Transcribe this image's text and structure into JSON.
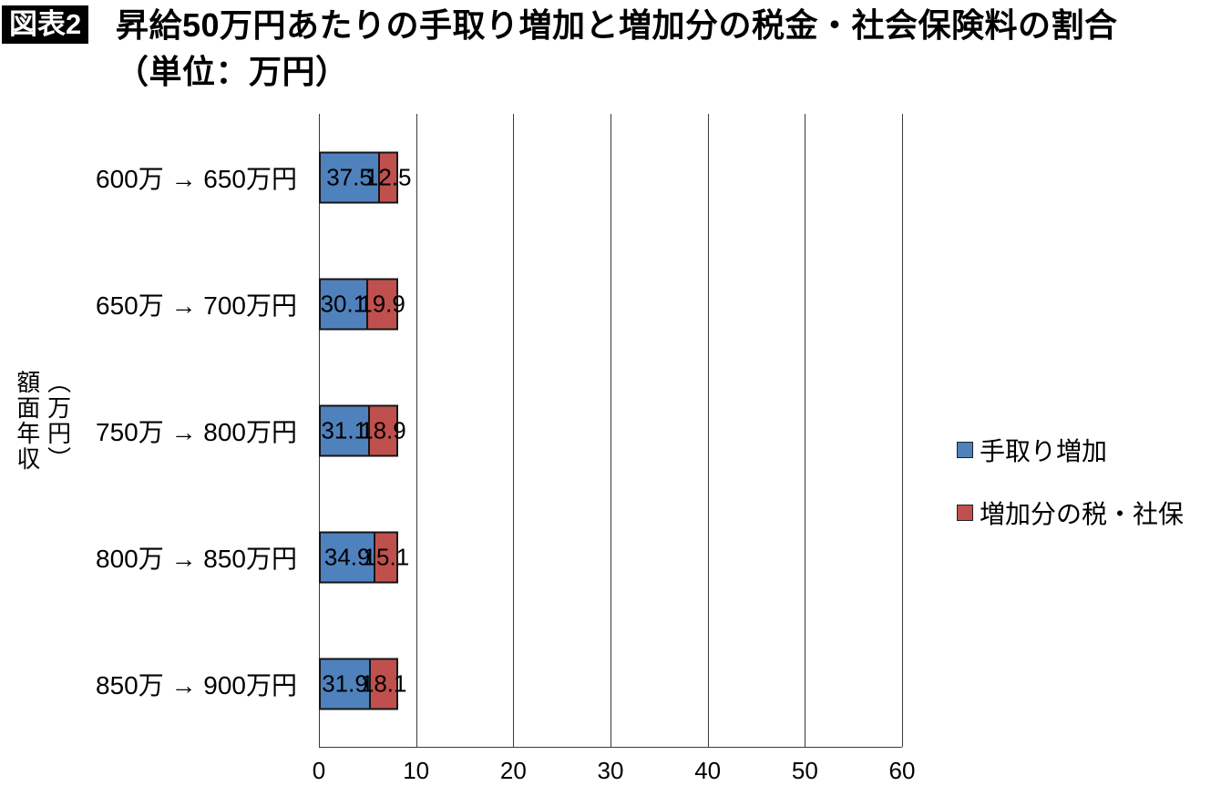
{
  "header": {
    "badge": "図表2",
    "title_line1": "昇給50万円あたりの手取り増加と増加分の税金・社会保険料の割合",
    "title_line2": "（単位：万円）"
  },
  "chart_data": {
    "type": "bar",
    "orientation": "horizontal",
    "stacked": true,
    "title": "昇給50万円あたりの手取り増加と増加分の税金・社会保険料の割合（単位：万円）",
    "categories": [
      "600万 → 650万円",
      "650万 → 700万円",
      "750万 → 800万円",
      "800万 → 850万円",
      "850万 → 900万円"
    ],
    "series": [
      {
        "name": "手取り増加",
        "color": "#4F81BD",
        "values": [
          37.5,
          30.1,
          31.1,
          34.9,
          31.9
        ]
      },
      {
        "name": "増加分の税・社保",
        "color": "#C0504D",
        "values": [
          12.5,
          19.9,
          18.9,
          15.1,
          18.1
        ]
      }
    ],
    "ylabel": "額面年収（万円）",
    "ylabel_lines": [
      "額面年収",
      "（万円）"
    ],
    "xlim": [
      0,
      60
    ],
    "xticks": [
      0,
      10,
      20,
      30,
      40,
      50,
      60
    ],
    "bar_total": 50,
    "grid": "vertical",
    "legend_position": "right",
    "bar_border_color": "#161616",
    "gridline_color": "#3a3a3a"
  }
}
